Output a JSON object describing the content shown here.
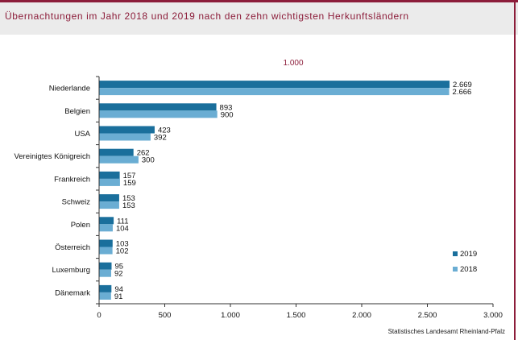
{
  "title": "Übernachtungen im Jahr 2018 und 2019 nach den zehn wichtigsten Herkunftsländern",
  "unit_label": "1.000",
  "source": "Statistisches Landesamt Rheinland-Pfalz",
  "colors": {
    "2019": "#1a6f9c",
    "2018": "#6aadd3",
    "accent": "#8c1d3a"
  },
  "chart_data": {
    "type": "bar",
    "orientation": "horizontal",
    "title": "Übernachtungen im Jahr 2018 und 2019 nach den zehn wichtigsten Herkunftsländern",
    "unit": "1.000",
    "categories": [
      "Niederlande",
      "Belgien",
      "USA",
      "Vereinigtes Königreich",
      "Frankreich",
      "Schweiz",
      "Polen",
      "Österreich",
      "Luxemburg",
      "Dänemark"
    ],
    "series": [
      {
        "name": "2019",
        "values": [
          2669,
          893,
          423,
          262,
          157,
          153,
          111,
          103,
          95,
          94
        ],
        "labels": [
          "2.669",
          "893",
          "423",
          "262",
          "157",
          "153",
          "111",
          "103",
          "95",
          "94"
        ]
      },
      {
        "name": "2018",
        "values": [
          2666,
          900,
          392,
          300,
          159,
          153,
          104,
          102,
          92,
          91
        ],
        "labels": [
          "2.666",
          "900",
          "392",
          "300",
          "159",
          "153",
          "104",
          "102",
          "92",
          "91"
        ]
      }
    ],
    "xlim": [
      0,
      3000
    ],
    "xticks": [
      0,
      500,
      1000,
      1500,
      2000,
      2500,
      3000
    ],
    "xtick_labels": [
      "0",
      "500",
      "1.000",
      "1.500",
      "2.000",
      "2.500",
      "3.000"
    ],
    "grid": false,
    "legend_position": "bottom-right"
  }
}
